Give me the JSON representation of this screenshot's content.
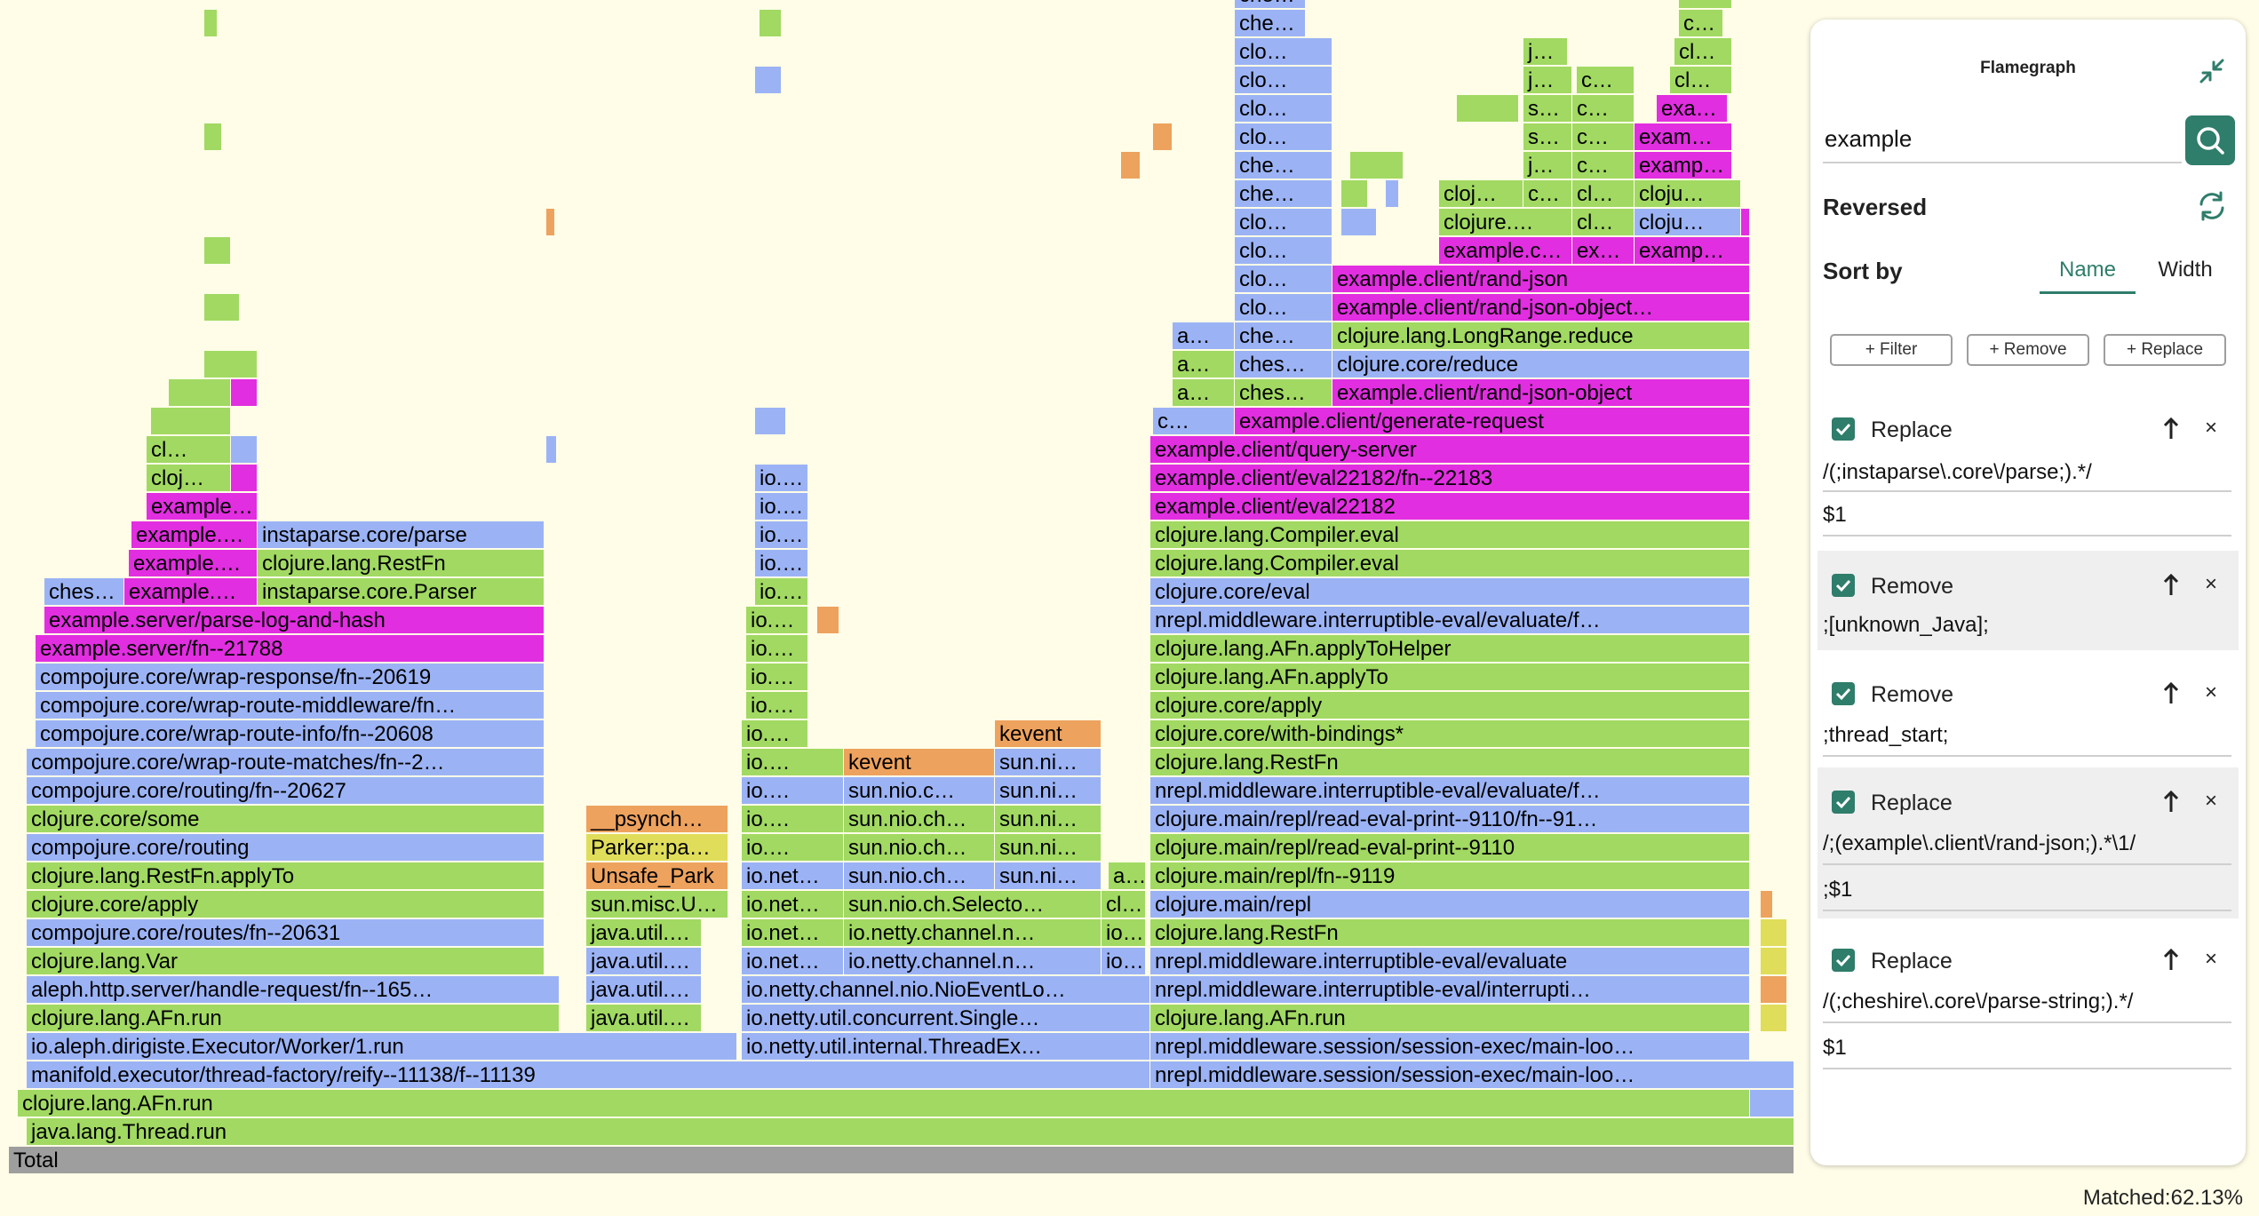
{
  "panel": {
    "title": "Flamegraph",
    "search_value": "example",
    "reversed_label": "Reversed",
    "sort_by_label": "Sort by",
    "sort_options": [
      "Name",
      "Width"
    ],
    "sort_selected": "Name",
    "buttons": {
      "filter": "+ Filter",
      "remove": "+ Remove",
      "replace": "+ Replace"
    },
    "rules": [
      {
        "type": "Replace",
        "checked": true,
        "pattern": "/(;instaparse\\.core\\/parse;).*/",
        "replacement": "$1"
      },
      {
        "type": "Remove",
        "checked": true,
        "pattern": ";[unknown_Java];"
      },
      {
        "type": "Remove",
        "checked": true,
        "pattern": ";thread_start;"
      },
      {
        "type": "Replace",
        "checked": true,
        "pattern": "/;(example\\.client\\/rand-json;).*\\1/",
        "replacement": ";$1"
      },
      {
        "type": "Replace",
        "checked": true,
        "pattern": "/(;cheshire\\.core\\/parse-string;).*/",
        "replacement": "$1"
      }
    ],
    "matched": "Matched:62.13%"
  },
  "colors": {
    "green": "#a1d962",
    "blue": "#9bb3f5",
    "magenta": "#e12ee0",
    "orange": "#eda25e",
    "yellow": "#e0dd5a",
    "gray": "#9e9e9e",
    "accent": "#2f7d6b"
  },
  "icons": {
    "collapse": "collapse-arrows-icon",
    "search": "search-icon",
    "refresh": "refresh-icon",
    "move_up": "arrow-up-icon",
    "delete": "close-icon",
    "checkbox": "checkbox-checked-icon"
  },
  "flame": {
    "total": "Total",
    "f1": "java.lang.Thread.run",
    "f2": "clojure.lang.AFn.run",
    "f3a": "manifold.executor/thread-factory/reify--11138/f--11139",
    "f3b": "nrepl.middleware.session/session-exec/main-loo…",
    "f4a": "io.aleph.dirigiste.Executor/Worker/1.run",
    "f4b": "io.netty.util.internal.ThreadEx…",
    "f4c": "nrepl.middleware.session/session-exec/main-loo…",
    "f5a": "clojure.lang.AFn.run",
    "f5b": "java.util.…",
    "f5c": "io.netty.util.concurrent.Single…",
    "f5d": "clojure.lang.AFn.run",
    "f6a": "aleph.http.server/handle-request/fn--165…",
    "f6b": "java.util.…",
    "f6c": "io.netty.channel.nio.NioEventLo…",
    "f6d": "nrepl.middleware.interruptible-eval/interrupti…",
    "f7a": "clojure.lang.Var",
    "f7b": "java.util.…",
    "f7c": "io.net…",
    "f7d": "io.netty.channel.n…",
    "f7e": "io…",
    "f7f": "nrepl.middleware.interruptible-eval/evaluate",
    "f8a": "compojure.core/routes/fn--20631",
    "f8b": "java.util.…",
    "f8c": "io.net…",
    "f8d": "io.netty.channel.n…",
    "f8e": "io…",
    "f8f": "clojure.lang.RestFn",
    "f9a": "clojure.core/apply",
    "f9b": "sun.misc.U…",
    "f9c": "io.net…",
    "f9d": "sun.nio.ch.Selecto…",
    "f9e": "cl…",
    "f9f": "clojure.main/repl",
    "f10a": "clojure.lang.RestFn.applyTo",
    "f10b": "Unsafe_Park",
    "f10c": "io.net…",
    "f10d": "sun.nio.ch…",
    "f10e": "sun.ni…",
    "f10f": "a…",
    "f10g": "clojure.main/repl/fn--9119",
    "f11a": "compojure.core/routing",
    "f11b": "Parker::pa…",
    "f11c": "io.…",
    "f11d": "sun.nio.ch…",
    "f11e": "sun.ni…",
    "f11f": "clojure.main/repl/read-eval-print--9110",
    "f12a": "clojure.core/some",
    "f12b": "__psynch…",
    "f12c": "io.…",
    "f12d": "sun.nio.ch…",
    "f12e": "sun.ni…",
    "f12f": "clojure.main/repl/read-eval-print--9110/fn--91…",
    "f13a": "compojure.core/routing/fn--20627",
    "f13b": "io.…",
    "f13c": "sun.nio.c…",
    "f13d": "sun.ni…",
    "f13e": "nrepl.middleware.interruptible-eval/evaluate/f…",
    "f14a": "compojure.core/wrap-route-matches/fn--2…",
    "f14b": "io.…",
    "f14c": "kevent",
    "f14d": "sun.ni…",
    "f14e": "clojure.lang.RestFn",
    "f15a": "compojure.core/wrap-route-info/fn--20608",
    "f15b": "io.…",
    "f15c": "kevent",
    "f15d": "clojure.core/with-bindings*",
    "f16a": "compojure.core/wrap-route-middleware/fn…",
    "f16b": "io.…",
    "f16c": "clojure.core/apply",
    "f17a": "compojure.core/wrap-response/fn--20619",
    "f17b": "io.…",
    "f17c": "clojure.lang.AFn.applyTo",
    "f18a": "example.server/fn--21788",
    "f18b": "io.…",
    "f18c": "clojure.lang.AFn.applyToHelper",
    "f19a": "example.server/parse-log-and-hash",
    "f19b": "io.…",
    "f19c": "nrepl.middleware.interruptible-eval/evaluate/f…",
    "f20a": "ches…",
    "f20b": "example.…",
    "f20c": "instaparse.core.Parser",
    "f20d": "io.…",
    "f20e": "clojure.core/eval",
    "f21a": "example.…",
    "f21b": "clojure.lang.RestFn",
    "f21c": "io.…",
    "f21d": "clojure.lang.Compiler.eval",
    "f22a": "example.…",
    "f22b": "instaparse.core/parse",
    "f22c": "io.…",
    "f22d": "clojure.lang.Compiler.eval",
    "f23a": "example…",
    "f23b": "io.…",
    "f23c": "example.client/eval22182",
    "f24a": "cloj…",
    "f24b": "io.…",
    "f24c": "example.client/eval22182/fn--22183",
    "f25a": "cl…",
    "f25b": "example.client/query-server",
    "f26a": "c…",
    "f26b": "example.client/generate-request",
    "f27a": "a…",
    "f27b": "ches…",
    "f27c": "example.client/rand-json-object",
    "f28a": "a…",
    "f28b": "ches…",
    "f28c": "clojure.core/reduce",
    "f29a": "a…",
    "f29b": "che…",
    "f29c": "clojure.lang.LongRange.reduce",
    "f30a": "clo…",
    "f30b": "example.client/rand-json-object…",
    "f31a": "clo…",
    "f31b": "example.client/rand-json",
    "f32a": "clo…",
    "f32b": "example.c…",
    "f32c": "ex…",
    "f32d": "examp…",
    "f33a": "clo…",
    "f33b": "clojure.…",
    "f33c": "cl…",
    "f33d": "cloju…",
    "f34a": "che…",
    "f34b": "cloj…",
    "f34c": "c…",
    "f34d": "cl…",
    "f34e": "cloju…",
    "f35a": "che…",
    "f35b": "j…",
    "f35c": "c…",
    "f35d": "examp…",
    "f36a": "clo…",
    "f36b": "s…",
    "f36c": "c…",
    "f36d": "exam…",
    "f37a": "clo…",
    "f37b": "s…",
    "f37c": "c…",
    "f37d": "exa…",
    "f38a": "clo…",
    "f38b": "j…",
    "f38c": "c…",
    "f38d": "cl…",
    "f39a": "clo…",
    "f39b": "j…",
    "f39c": "cl…",
    "f40a": "che…",
    "f40b": "c…",
    "f41a": "che…"
  }
}
